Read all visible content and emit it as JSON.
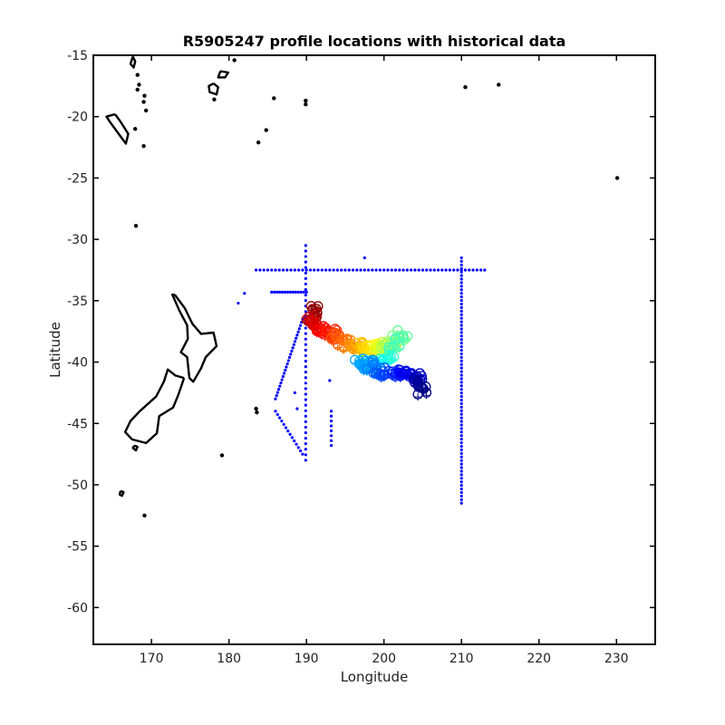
{
  "chart_data": {
    "type": "scatter",
    "title": "R5905247 profile locations with historical data",
    "xlabel": "Longitude",
    "ylabel": "Latitude",
    "xlim": [
      162.5,
      235
    ],
    "ylim": [
      -63,
      -15
    ],
    "xticks": [
      170,
      180,
      190,
      200,
      210,
      220,
      230
    ],
    "yticks": [
      -15,
      -20,
      -25,
      -30,
      -35,
      -40,
      -45,
      -50,
      -55,
      -60
    ],
    "grid": false,
    "legend": "none",
    "colors": {
      "historical": "#0000ff",
      "coastline": "#000000",
      "axes": "#000000"
    },
    "historical_data": {
      "color": "#0000ff",
      "segments": [
        {
          "from": [
            183.5,
            -32.5
          ],
          "to": [
            213,
            -32.5
          ],
          "n": 60
        },
        {
          "from": [
            210,
            -31.5
          ],
          "to": [
            210,
            -51.5
          ],
          "n": 70
        },
        {
          "from": [
            189.9,
            -30.5
          ],
          "to": [
            189.9,
            -48
          ],
          "n": 40
        },
        {
          "from": [
            185.5,
            -34.3
          ],
          "to": [
            190,
            -34.3
          ],
          "n": 14
        },
        {
          "from": [
            189.5,
            -36.5
          ],
          "to": [
            186,
            -43
          ],
          "n": 26
        },
        {
          "from": [
            186,
            -44
          ],
          "to": [
            189.5,
            -47.5
          ],
          "n": 14
        },
        {
          "from": [
            193.2,
            -44
          ],
          "to": [
            193.2,
            -46.8
          ],
          "n": 8
        }
      ],
      "points": [
        [
          197.5,
          -31.5
        ],
        [
          181.2,
          -35.2
        ],
        [
          182,
          -34.4
        ],
        [
          193,
          -41.5
        ],
        [
          188.5,
          -42.5
        ],
        [
          188.8,
          -43.8
        ]
      ]
    },
    "profiles": {
      "colormap": "jet",
      "path": [
        [
          191.5,
          -35.5
        ],
        [
          190.5,
          -36.6
        ],
        [
          192,
          -37.3
        ],
        [
          193.5,
          -37.8
        ],
        [
          195,
          -38.4
        ],
        [
          197,
          -38.6
        ],
        [
          198.5,
          -39.0
        ],
        [
          199.5,
          -38.8
        ],
        [
          201,
          -38.6
        ],
        [
          202.5,
          -37.5
        ],
        [
          200.5,
          -39.8
        ],
        [
          198,
          -40.3
        ],
        [
          197,
          -39.8
        ],
        [
          199,
          -40.6
        ],
        [
          201,
          -41.0
        ],
        [
          203,
          -40.8
        ],
        [
          204.5,
          -41.4
        ],
        [
          205,
          -42.3
        ]
      ],
      "count": 230
    },
    "coastlines": [
      [
        [
          173.0,
          -34.5
        ],
        [
          174.3,
          -35.6
        ],
        [
          175.3,
          -36.9
        ],
        [
          176.4,
          -37.7
        ],
        [
          178.0,
          -37.6
        ],
        [
          178.4,
          -38.7
        ],
        [
          177.0,
          -39.6
        ],
        [
          176.4,
          -40.5
        ],
        [
          175.4,
          -41.6
        ],
        [
          174.9,
          -41.3
        ],
        [
          174.6,
          -39.6
        ],
        [
          173.8,
          -39.2
        ],
        [
          174.7,
          -38.1
        ],
        [
          174.6,
          -37.0
        ],
        [
          173.6,
          -35.8
        ],
        [
          172.7,
          -34.5
        ],
        [
          173.0,
          -34.5
        ]
      ],
      [
        [
          174.2,
          -41.3
        ],
        [
          173.5,
          -42.6
        ],
        [
          172.8,
          -43.7
        ],
        [
          171.0,
          -44.4
        ],
        [
          170.7,
          -45.8
        ],
        [
          169.3,
          -46.6
        ],
        [
          167.5,
          -46.3
        ],
        [
          166.6,
          -45.7
        ],
        [
          167.3,
          -44.8
        ],
        [
          168.5,
          -44.0
        ],
        [
          170.6,
          -42.8
        ],
        [
          171.6,
          -41.6
        ],
        [
          172.1,
          -40.6
        ],
        [
          173.1,
          -41.1
        ],
        [
          174.2,
          -41.3
        ]
      ],
      [
        [
          167.8,
          -46.8
        ],
        [
          168.2,
          -46.9
        ],
        [
          168.0,
          -47.2
        ],
        [
          167.6,
          -47.0
        ],
        [
          167.8,
          -46.8
        ]
      ],
      [
        [
          166.0,
          -50.5
        ],
        [
          166.4,
          -50.6
        ],
        [
          166.2,
          -50.9
        ],
        [
          165.9,
          -50.8
        ],
        [
          166.0,
          -50.5
        ]
      ],
      [
        [
          165.3,
          -19.8
        ],
        [
          166.0,
          -20.4
        ],
        [
          167.0,
          -21.4
        ],
        [
          166.7,
          -22.2
        ],
        [
          166.0,
          -21.6
        ],
        [
          164.6,
          -20.4
        ],
        [
          164.2,
          -20.0
        ],
        [
          165.3,
          -19.8
        ]
      ],
      [
        [
          178.0,
          -17.3
        ],
        [
          178.6,
          -17.6
        ],
        [
          178.4,
          -18.2
        ],
        [
          177.5,
          -18.0
        ],
        [
          177.4,
          -17.5
        ],
        [
          178.0,
          -17.3
        ]
      ],
      [
        [
          178.9,
          -16.3
        ],
        [
          179.9,
          -16.4
        ],
        [
          179.5,
          -16.8
        ],
        [
          178.6,
          -16.8
        ],
        [
          178.9,
          -16.3
        ]
      ],
      [
        [
          167.6,
          -15.1
        ],
        [
          167.9,
          -15.5
        ],
        [
          167.7,
          -16.0
        ],
        [
          167.3,
          -15.7
        ],
        [
          167.6,
          -15.1
        ]
      ]
    ],
    "islands": [
      [
        168.2,
        -16.6
      ],
      [
        168.4,
        -17.4
      ],
      [
        169.0,
        -18.8
      ],
      [
        169.3,
        -19.5
      ],
      [
        169.1,
        -18.3
      ],
      [
        168.2,
        -17.8
      ],
      [
        167.9,
        -21.0
      ],
      [
        169.0,
        -22.4
      ],
      [
        168.0,
        -28.9
      ],
      [
        178.1,
        -18.6
      ],
      [
        180.7,
        -15.4
      ],
      [
        183.8,
        -22.1
      ],
      [
        185.8,
        -18.5
      ],
      [
        184.8,
        -21.1
      ],
      [
        189.9,
        -18.7
      ],
      [
        189.9,
        -19.0
      ],
      [
        210.5,
        -17.6
      ],
      [
        214.8,
        -17.4
      ],
      [
        230.1,
        -25.0
      ],
      [
        179.1,
        -47.6
      ],
      [
        169.1,
        -52.5
      ],
      [
        183.5,
        -43.8
      ],
      [
        183.6,
        -44.1
      ]
    ]
  }
}
